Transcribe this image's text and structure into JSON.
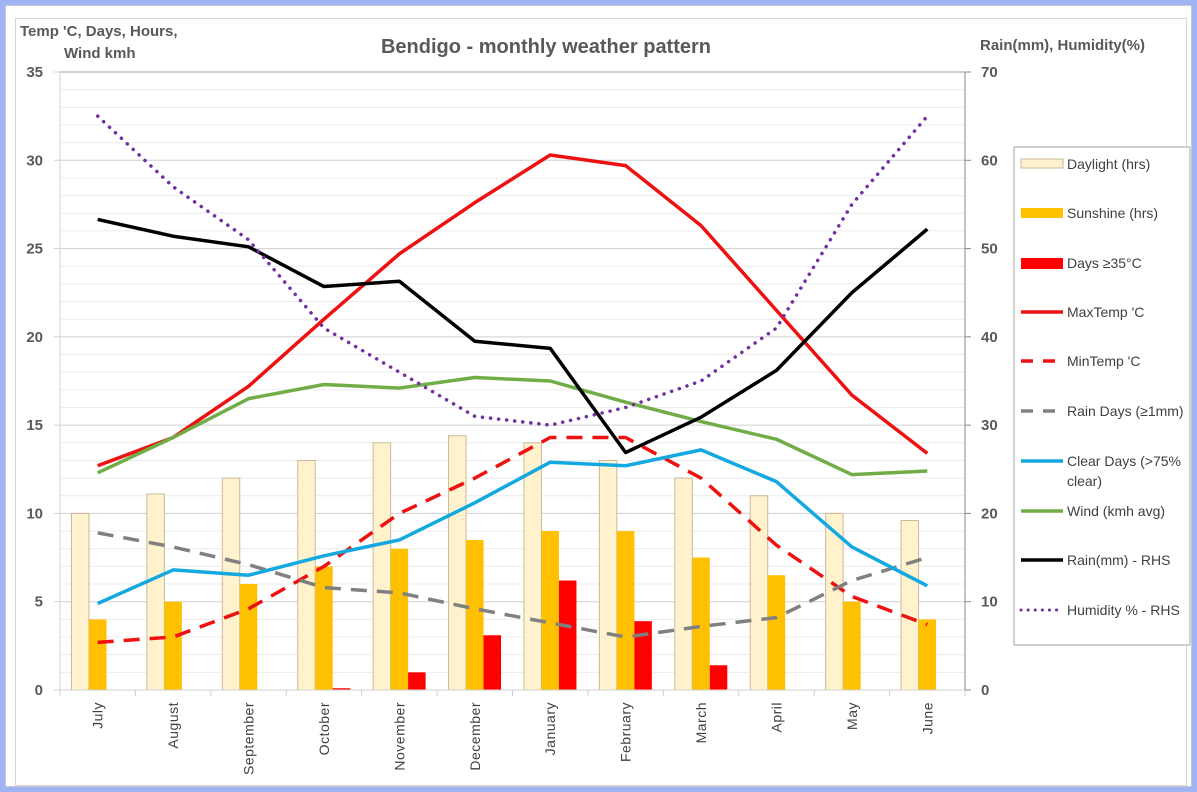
{
  "chart_data": {
    "type": "bar+line",
    "title": "Bendigo - monthly weather pattern",
    "ylabel_left": [
      "Temp 'C, Days, Hours,",
      "Wind kmh"
    ],
    "ylabel_right": "Rain(mm), Humidity(%)",
    "ylim_left": [
      0,
      35
    ],
    "ylim_right": [
      0,
      70
    ],
    "yticks_left": [
      0,
      5,
      10,
      15,
      20,
      25,
      30,
      35
    ],
    "yticks_right": [
      0,
      10,
      20,
      30,
      40,
      50,
      60,
      70
    ],
    "grid": true,
    "legend_position": "right",
    "categories": [
      "July",
      "August",
      "September",
      "October",
      "November",
      "December",
      "January",
      "February",
      "March",
      "April",
      "May",
      "June"
    ],
    "series": [
      {
        "name": "Daylight (hrs)",
        "type": "bar",
        "axis": "left",
        "color": "#fff2cc",
        "stroke": "#c9b99a",
        "values": [
          10,
          11.1,
          12,
          13,
          14,
          14.4,
          14,
          13,
          12,
          11,
          10,
          9.6
        ]
      },
      {
        "name": "Sunshine (hrs)",
        "type": "bar",
        "axis": "left",
        "color": "#ffc000",
        "values": [
          4,
          5,
          6,
          7,
          8,
          8.5,
          9,
          9,
          7.5,
          6.5,
          5,
          4
        ]
      },
      {
        "name": "Days ≥35°C",
        "type": "bar",
        "axis": "left",
        "color": "#ff0000",
        "values": [
          0,
          0,
          0,
          0.1,
          1,
          3.1,
          6.2,
          3.9,
          1.4,
          0,
          0,
          0
        ]
      },
      {
        "name": "MaxTemp 'C",
        "type": "line",
        "axis": "left",
        "color": "#ee1111",
        "dash": "solid",
        "values": [
          12.7,
          14.3,
          17.2,
          21,
          24.7,
          27.6,
          30.3,
          29.7,
          26.3,
          21.5,
          16.7,
          13.4
        ]
      },
      {
        "name": "MinTemp 'C",
        "type": "line",
        "axis": "left",
        "color": "#ee1111",
        "dash": "dashed",
        "values": [
          2.7,
          3,
          4.6,
          7,
          10,
          12,
          14.3,
          14.3,
          12,
          8.2,
          5.3,
          3.7
        ]
      },
      {
        "name": "Rain Days (≥1mm)",
        "type": "line",
        "axis": "left",
        "color": "#808080",
        "dash": "dashed",
        "values": [
          8.9,
          8.1,
          7.1,
          5.8,
          5.5,
          4.6,
          3.8,
          3,
          3.6,
          4.1,
          6.2,
          7.5
        ]
      },
      {
        "name": "Clear Days (>75% clear)",
        "type": "line",
        "axis": "left",
        "color": "#13a8e0",
        "dash": "solid",
        "values": [
          4.9,
          6.8,
          6.5,
          7.6,
          8.5,
          10.6,
          12.9,
          12.7,
          13.6,
          11.8,
          8.1,
          5.9
        ]
      },
      {
        "name": "Wind (kmh avg)",
        "type": "line",
        "axis": "left",
        "color": "#70ad47",
        "dash": "solid",
        "values": [
          12.3,
          14.3,
          16.5,
          17.3,
          17.1,
          17.7,
          17.5,
          16.3,
          15.2,
          14.2,
          12.2,
          12.4
        ]
      },
      {
        "name": "Rain(mm) - RHS",
        "type": "line",
        "axis": "right",
        "color": "#000000",
        "dash": "solid",
        "values": [
          53.3,
          51.4,
          50.2,
          45.7,
          46.3,
          39.5,
          38.7,
          26.9,
          30.9,
          36.2,
          45,
          52.2
        ]
      },
      {
        "name": "Humidity % - RHS",
        "type": "line",
        "axis": "right",
        "color": "#7030a0",
        "dash": "dotted",
        "values": [
          65,
          57,
          51,
          41,
          36,
          31,
          30,
          32,
          35,
          41,
          55,
          65
        ]
      }
    ],
    "legend": [
      {
        "label": "Daylight (hrs)",
        "kind": "box",
        "color": "#fff2cc"
      },
      {
        "label": "Sunshine (hrs)",
        "kind": "box",
        "color": "#ffc000"
      },
      {
        "label": "Days ≥35°C",
        "kind": "box",
        "color": "#ff0000"
      },
      {
        "label": "MaxTemp 'C",
        "kind": "line",
        "color": "#ee1111",
        "dash": "solid"
      },
      {
        "label": "MinTemp 'C",
        "kind": "line",
        "color": "#ee1111",
        "dash": "dashed"
      },
      {
        "label": "Rain Days (≥1mm)",
        "kind": "line",
        "color": "#808080",
        "dash": "dashed"
      },
      {
        "label": [
          "Clear Days (>75%",
          "clear)"
        ],
        "kind": "line",
        "color": "#13a8e0",
        "dash": "solid"
      },
      {
        "label": "Wind (kmh avg)",
        "kind": "line",
        "color": "#70ad47",
        "dash": "solid"
      },
      {
        "label": "Rain(mm) - RHS",
        "kind": "line",
        "color": "#000000",
        "dash": "solid"
      },
      {
        "label": "Humidity % - RHS",
        "kind": "line",
        "color": "#7030a0",
        "dash": "dotted"
      }
    ]
  }
}
